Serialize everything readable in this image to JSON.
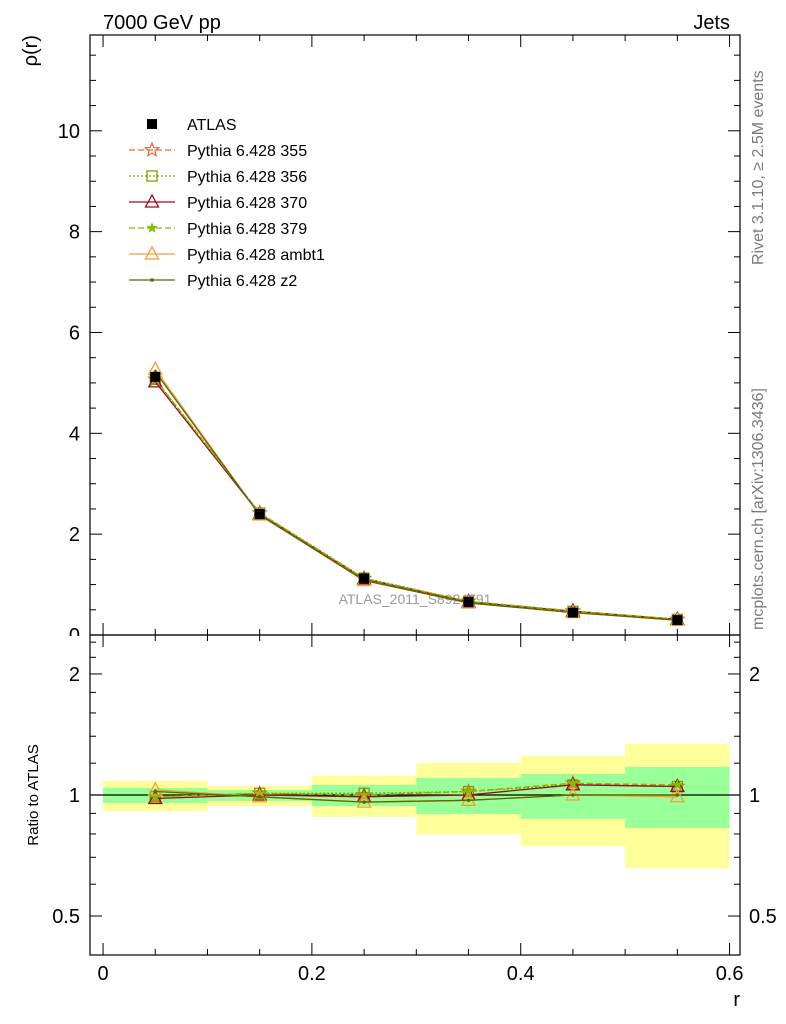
{
  "header": {
    "left": "7000 GeV pp",
    "right": "Jets"
  },
  "side_text": {
    "rivet": "Rivet 3.1.10, ≥ 2.5M events",
    "mcplots": "mcplots.cern.ch [arXiv:1306.3436]"
  },
  "watermark": "ATLAS_2011_S8924791",
  "chart_data": [
    {
      "type": "line",
      "ylabel": "ρ(r)",
      "xlim": [
        -0.0125,
        0.61
      ],
      "ylim": [
        0,
        11.9
      ],
      "grid": false,
      "legend": "top-left",
      "yticks": [
        {
          "value": 0,
          "label": "0"
        },
        {
          "value": 2,
          "label": "2"
        },
        {
          "value": 4,
          "label": "4"
        },
        {
          "value": 6,
          "label": "6"
        },
        {
          "value": 8,
          "label": "8"
        },
        {
          "value": 10,
          "label": "10"
        }
      ],
      "x": [
        0.05,
        0.15,
        0.25,
        0.35,
        0.45,
        0.55
      ],
      "series": [
        {
          "name": "ATLAS",
          "values": [
            5.12,
            2.4,
            1.12,
            0.655,
            0.445,
            0.295
          ],
          "color": "#000000",
          "marker": "filled-square",
          "line": "none"
        },
        {
          "name": "Pythia 6.428 355",
          "values": [
            5.07,
            2.42,
            1.12,
            0.668,
            0.476,
            0.31
          ],
          "color": "#ee6633",
          "marker": "open-star",
          "line": "dashed"
        },
        {
          "name": "Pythia 6.428 356",
          "values": [
            5.07,
            2.42,
            1.13,
            0.668,
            0.472,
            0.31
          ],
          "color": "#7f9f00",
          "marker": "open-square",
          "line": "dotted"
        },
        {
          "name": "Pythia 6.428 370",
          "values": [
            5.02,
            2.4,
            1.11,
            0.655,
            0.472,
            0.31
          ],
          "color": "#9c0a1e",
          "marker": "open-triangle",
          "line": "solid"
        },
        {
          "name": "Pythia 6.428 379",
          "values": [
            5.07,
            2.42,
            1.12,
            0.668,
            0.476,
            0.313
          ],
          "color": "#7fbf00",
          "marker": "filled-star",
          "line": "dashed"
        },
        {
          "name": "Pythia 6.428 ambt1",
          "values": [
            5.27,
            2.38,
            1.08,
            0.635,
            0.445,
            0.292
          ],
          "color": "#f0a030",
          "marker": "open-triangle",
          "line": "solid"
        },
        {
          "name": "Pythia 6.428 z2",
          "values": [
            5.22,
            2.38,
            1.08,
            0.635,
            0.445,
            0.295
          ],
          "color": "#5f6600",
          "marker": "dot",
          "line": "solid"
        }
      ]
    },
    {
      "type": "line",
      "xlabel": "r",
      "ylabel": "Ratio to ATLAS",
      "yscale": "log",
      "xlim": [
        -0.0125,
        0.61
      ],
      "ylim": [
        0.4,
        2.5
      ],
      "grid": false,
      "reference": 1,
      "xticks": [
        {
          "value": 0,
          "label": "0"
        },
        {
          "value": 0.2,
          "label": "0.2"
        },
        {
          "value": 0.4,
          "label": "0.4"
        },
        {
          "value": 0.6,
          "label": "0.6"
        }
      ],
      "yticks": [
        {
          "value": 0.5,
          "label": "0.5"
        },
        {
          "value": 1,
          "label": "1"
        },
        {
          "value": 2,
          "label": "2"
        }
      ],
      "bins": [
        0,
        0.1,
        0.2,
        0.3,
        0.4,
        0.5,
        0.6
      ],
      "band_outer": {
        "color": "#ffff99",
        "lower": [
          0.912,
          0.939,
          0.882,
          0.8,
          0.747,
          0.658
        ],
        "upper": [
          1.083,
          1.053,
          1.115,
          1.201,
          1.25,
          1.339
        ]
      },
      "band_inner": {
        "color": "#99ff99",
        "lower": [
          0.955,
          0.966,
          0.939,
          0.897,
          0.872,
          0.828
        ],
        "upper": [
          1.041,
          1.029,
          1.059,
          1.102,
          1.128,
          1.174
        ]
      },
      "x": [
        0.05,
        0.15,
        0.25,
        0.35,
        0.45,
        0.55
      ],
      "series": [
        {
          "values": [
            0.99,
            1.01,
            1.0,
            1.02,
            1.07,
            1.05
          ],
          "color": "#ee6633",
          "marker": "open-star",
          "line": "dashed"
        },
        {
          "values": [
            0.99,
            1.01,
            1.01,
            1.02,
            1.06,
            1.05
          ],
          "color": "#7f9f00",
          "marker": "open-square",
          "line": "dotted"
        },
        {
          "values": [
            0.98,
            1.0,
            0.99,
            1.0,
            1.06,
            1.05
          ],
          "color": "#9c0a1e",
          "marker": "open-triangle",
          "line": "solid"
        },
        {
          "values": [
            0.99,
            1.01,
            1.0,
            1.02,
            1.07,
            1.06
          ],
          "color": "#7fbf00",
          "marker": "filled-star",
          "line": "dashed"
        },
        {
          "values": [
            1.03,
            0.99,
            0.96,
            0.97,
            1.0,
            0.99
          ],
          "color": "#f0a030",
          "marker": "open-triangle",
          "line": "solid"
        },
        {
          "values": [
            1.02,
            0.99,
            0.96,
            0.97,
            1.0,
            1.0
          ],
          "color": "#5f6600",
          "marker": "dot",
          "line": "solid"
        }
      ]
    }
  ]
}
